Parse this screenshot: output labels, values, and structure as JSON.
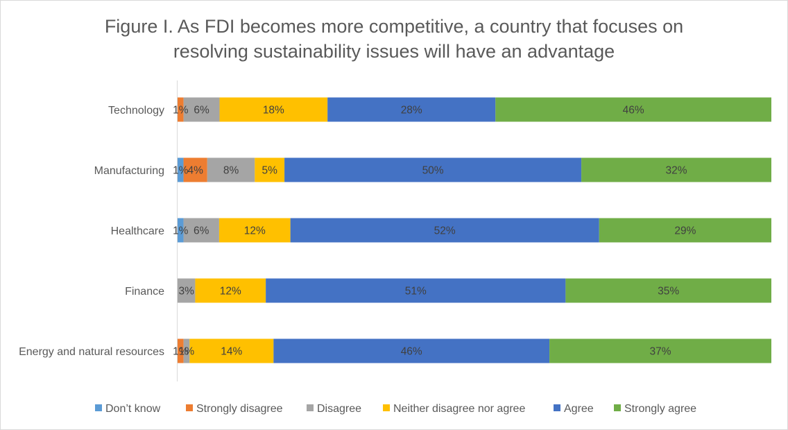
{
  "chart_data": {
    "type": "bar",
    "orientation": "horizontal",
    "stacked": "percent",
    "title_lines": [
      "Figure I. As FDI becomes more competitive, a country that focuses on",
      "resolving sustainability issues will have an advantage"
    ],
    "categories": [
      "Technology",
      "Manufacturing",
      "Healthcare",
      "Finance",
      "Energy and natural resources"
    ],
    "series": [
      {
        "name": "Don’t know",
        "color": "#5B9BD5",
        "values": [
          0,
          1,
          1,
          0,
          0
        ],
        "labels": [
          "",
          "1%",
          "1%",
          "",
          ""
        ]
      },
      {
        "name": "Strongly disagree",
        "color": "#ED7D31",
        "values": [
          1,
          4,
          0,
          0,
          1
        ],
        "labels": [
          "1%",
          "4%",
          "",
          "",
          "1%"
        ]
      },
      {
        "name": "Disagree",
        "color": "#A5A5A5",
        "values": [
          6,
          8,
          6,
          3,
          1
        ],
        "labels": [
          "6%",
          "8%",
          "6%",
          "3%",
          "1%"
        ]
      },
      {
        "name": "Neither disagree nor agree",
        "color": "#FFC000",
        "values": [
          18,
          5,
          12,
          12,
          14
        ],
        "labels": [
          "18%",
          "5%",
          "12%",
          "12%",
          "14%"
        ]
      },
      {
        "name": "Agree",
        "color": "#4472C4",
        "values": [
          28,
          50,
          52,
          51,
          46
        ],
        "labels": [
          "28%",
          "50%",
          "52%",
          "51%",
          "46%"
        ]
      },
      {
        "name": "Strongly agree",
        "color": "#70AD47",
        "values": [
          46,
          32,
          29,
          35,
          37
        ],
        "labels": [
          "46%",
          "32%",
          "29%",
          "35%",
          "37%"
        ]
      }
    ],
    "xlim": [
      0,
      100
    ],
    "grid": false,
    "legend_position": "bottom"
  }
}
